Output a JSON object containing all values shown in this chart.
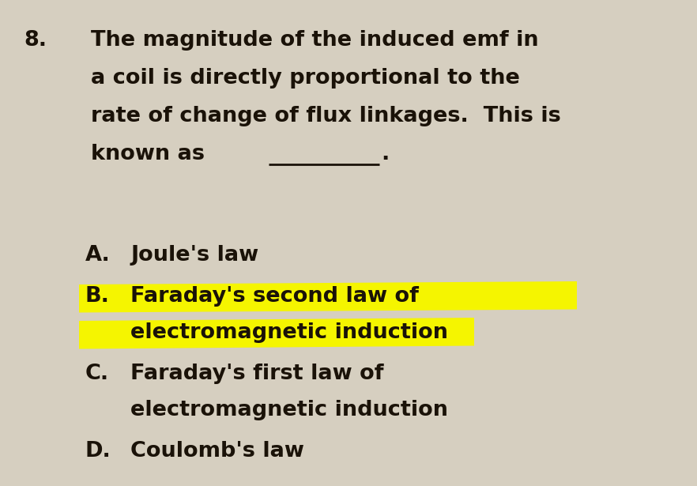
{
  "background_color": "#d6cfc0",
  "question_number": "8.",
  "question_lines": [
    "The magnitude of the induced emf in",
    "a coil is directly proportional to the",
    "rate of change of flux linkages.  This is",
    "known as"
  ],
  "underline_text": "________",
  "underline_after": true,
  "options": [
    {
      "label": "A.",
      "text": "Joule's law",
      "highlighted": false,
      "line2": ""
    },
    {
      "label": "B.",
      "text": "Faraday's second law of",
      "highlighted": true,
      "line2": "electromagnetic induction"
    },
    {
      "label": "C.",
      "text": "Faraday's first law of",
      "highlighted": false,
      "line2": "electromagnetic induction"
    },
    {
      "label": "D.",
      "text": "Coulomb's law",
      "highlighted": false,
      "line2": ""
    }
  ],
  "highlight_color": "#f5f500",
  "text_color": "#1a1208",
  "font_size": 19.5
}
